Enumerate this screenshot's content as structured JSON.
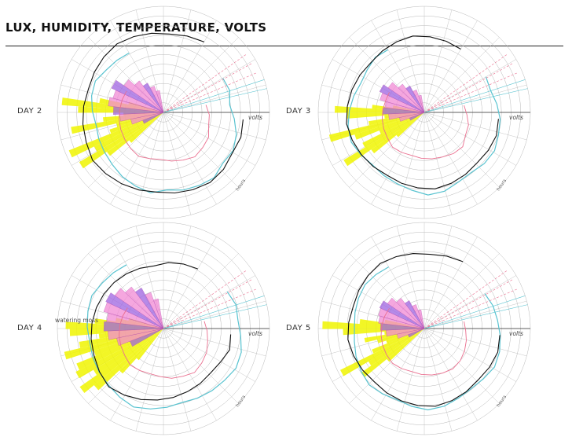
{
  "header": {
    "title": "LUX, HUMIDITY, TEMPERATURE, VOLTS"
  },
  "colors": {
    "lux": "#f0f500",
    "humidity": "#59c3d0",
    "temperature": "#ea6f8f",
    "volts": "#111111",
    "fill_pink": "#f28ad4",
    "fill_purple": "#9d63e0",
    "grid": "#b8b8b8"
  },
  "chart_data": [
    {
      "type": "polar",
      "day_label": "DAY 2",
      "axis_label": "volts",
      "hours_label": "hours",
      "lux": [
        0,
        0,
        0,
        0,
        0,
        0,
        0,
        0,
        0,
        0,
        0,
        0,
        0,
        0,
        0,
        0,
        0,
        0,
        0,
        0,
        0.25,
        0.55,
        0.9,
        0.65,
        0.95,
        0.4,
        0.3,
        0.85,
        0.45,
        0.2,
        0.75,
        0.95,
        0.5,
        0.15,
        0,
        0,
        0
      ],
      "fill": [
        0.28,
        0.42,
        0.55,
        0.63,
        0.7,
        0.66,
        0.72,
        0.6,
        0.5,
        0.42,
        0.35,
        0.28
      ],
      "humidity": [
        0.58,
        0.6,
        0.55,
        0.62,
        0.7,
        0.75,
        0.73,
        0.8,
        0.78,
        0.76,
        0.72,
        0.78,
        0.74,
        0.7,
        0.65,
        0.62,
        0.6,
        0.58,
        0.62,
        0.66,
        0.68,
        0.62,
        0.6,
        0.58
      ],
      "temperature": [
        0.35,
        0.4,
        0.42,
        0.5,
        0.52,
        0.55,
        0.5,
        0.46,
        0.42,
        0.44,
        0.48,
        0.45,
        0.42,
        0.4,
        0.38,
        0.36,
        0.35,
        0.34
      ],
      "volts": [
        0.7,
        0.72,
        0.7,
        0.74,
        0.76,
        0.74,
        0.72,
        0.7,
        0.72,
        0.74,
        0.76,
        0.78,
        0.74,
        0.72,
        0.7,
        0.68,
        0.7,
        0.72,
        0.74,
        0.72,
        0.7,
        0.68,
        0.7,
        0.72
      ]
    },
    {
      "type": "polar",
      "day_label": "DAY 3",
      "axis_label": "volts",
      "hours_label": "hours",
      "lux": [
        0,
        0,
        0,
        0,
        0,
        0,
        0,
        0,
        0,
        0,
        0,
        0,
        0,
        0,
        0,
        0,
        0,
        0,
        0,
        0,
        0.15,
        0.5,
        0.85,
        0.55,
        0.3,
        0.6,
        0.9,
        0.4,
        0.2,
        0.65,
        0.8,
        0.35,
        0.1,
        0,
        0,
        0,
        0
      ],
      "fill": [
        0.2,
        0.32,
        0.45,
        0.52,
        0.5,
        0.58,
        0.62,
        0.55,
        0.45,
        0.38,
        0.3,
        0.22
      ],
      "humidity": [
        0.62,
        0.6,
        0.65,
        0.7,
        0.72,
        0.76,
        0.74,
        0.7,
        0.72,
        0.78,
        0.8,
        0.74,
        0.7,
        0.68,
        0.66,
        0.7,
        0.74,
        0.72,
        0.68,
        0.64,
        0.6,
        0.62,
        0.66,
        0.64
      ],
      "temperature": [
        0.3,
        0.34,
        0.4,
        0.42,
        0.5,
        0.48,
        0.44,
        0.42,
        0.4,
        0.38,
        0.4,
        0.42,
        0.38,
        0.36,
        0.34,
        0.32,
        0.3,
        0.3
      ],
      "volts": [
        0.62,
        0.64,
        0.62,
        0.6,
        0.62,
        0.64,
        0.66,
        0.64,
        0.62,
        0.6,
        0.62,
        0.64,
        0.66,
        0.68,
        0.66,
        0.64,
        0.62,
        0.6,
        0.62,
        0.64,
        0.66,
        0.64,
        0.62,
        0.6
      ]
    },
    {
      "type": "polar",
      "day_label": "DAY 4",
      "axis_label": "volts",
      "hours_label": "hours",
      "annotation": "watering moss",
      "lux": [
        0,
        0,
        0,
        0,
        0,
        0,
        0,
        0,
        0,
        0,
        0,
        0,
        0,
        0,
        0,
        0,
        0,
        0,
        0.2,
        0.45,
        0.8,
        0.95,
        0.7,
        0.9,
        0.85,
        0.6,
        0.95,
        0.75,
        0.5,
        0.85,
        0.9,
        0.55,
        0.3,
        0.15,
        0,
        0,
        0
      ],
      "fill": [
        0.45,
        0.6,
        0.7,
        0.75,
        0.72,
        0.78,
        0.8,
        0.74,
        0.66,
        0.58,
        0.48,
        0.38
      ],
      "humidity": [
        0.66,
        0.7,
        0.68,
        0.72,
        0.78,
        0.8,
        0.76,
        0.74,
        0.72,
        0.7,
        0.74,
        0.78,
        0.82,
        0.78,
        0.74,
        0.72,
        0.7,
        0.68,
        0.7,
        0.72,
        0.74,
        0.7,
        0.68,
        0.66
      ],
      "temperature": [
        0.32,
        0.36,
        0.4,
        0.46,
        0.5,
        0.54,
        0.5,
        0.48,
        0.44,
        0.42,
        0.44,
        0.46,
        0.42,
        0.4,
        0.38,
        0.36,
        0.34,
        0.32
      ],
      "volts": [
        0.52,
        0.55,
        0.5,
        0.48,
        0.5,
        0.52,
        0.55,
        0.58,
        0.62,
        0.66,
        0.7,
        0.66,
        0.62,
        0.6,
        0.58,
        0.56,
        0.54,
        0.52,
        0.5,
        0.48,
        0.46,
        0.5,
        0.52,
        0.54
      ]
    },
    {
      "type": "polar",
      "day_label": "DAY 5",
      "axis_label": "volts",
      "hours_label": "hours",
      "lux": [
        0,
        0,
        0,
        0,
        0,
        0,
        0,
        0,
        0,
        0,
        0,
        0,
        0,
        0,
        0,
        0,
        0,
        0,
        0,
        0,
        0.3,
        0.65,
        0.5,
        0.85,
        0.4,
        0.2,
        0.3,
        0.45,
        0.2,
        0.7,
        0.95,
        0.5,
        0.2,
        0,
        0,
        0,
        0
      ],
      "fill": [
        0.22,
        0.35,
        0.48,
        0.55,
        0.58,
        0.6,
        0.62,
        0.56,
        0.48,
        0.4,
        0.32,
        0.24
      ],
      "humidity": [
        0.6,
        0.64,
        0.66,
        0.7,
        0.74,
        0.76,
        0.72,
        0.7,
        0.72,
        0.76,
        0.78,
        0.74,
        0.7,
        0.72,
        0.74,
        0.7,
        0.66,
        0.62,
        0.6,
        0.62,
        0.64,
        0.66,
        0.64,
        0.62
      ],
      "temperature": [
        0.3,
        0.32,
        0.36,
        0.4,
        0.44,
        0.46,
        0.44,
        0.42,
        0.4,
        0.38,
        0.4,
        0.42,
        0.4,
        0.38,
        0.36,
        0.34,
        0.32,
        0.3
      ],
      "volts": [
        0.64,
        0.66,
        0.64,
        0.62,
        0.64,
        0.66,
        0.68,
        0.66,
        0.64,
        0.62,
        0.6,
        0.62,
        0.64,
        0.66,
        0.64,
        0.62,
        0.64,
        0.66,
        0.68,
        0.66,
        0.64,
        0.62,
        0.64,
        0.66
      ]
    }
  ]
}
